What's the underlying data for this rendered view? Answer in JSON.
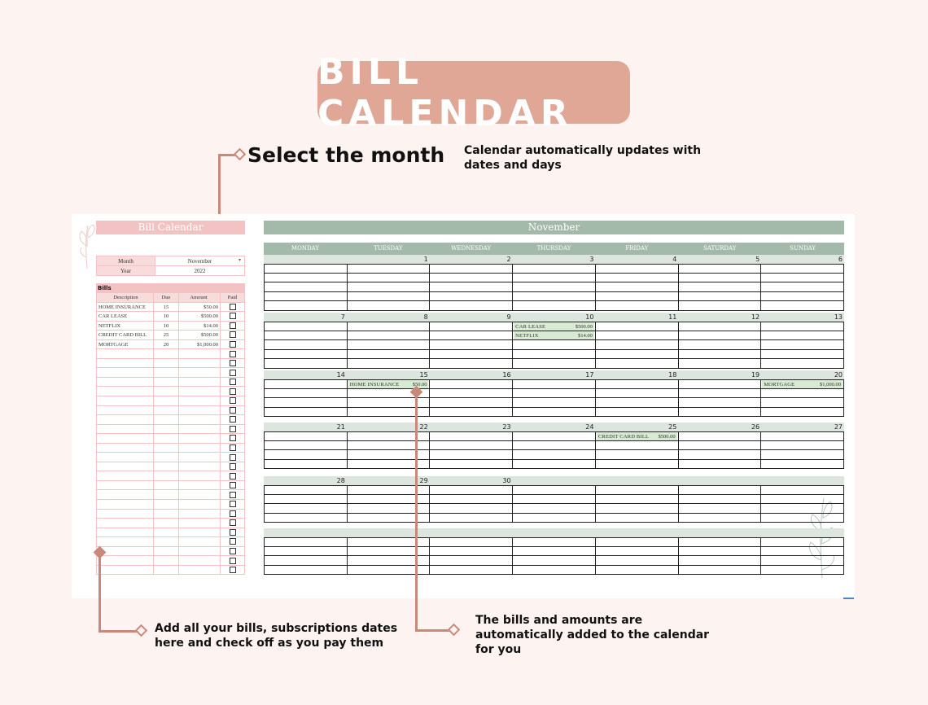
{
  "banner": {
    "title": "BILL CALENDAR"
  },
  "callouts": {
    "select_month": "Select the month",
    "auto_update": [
      "Calendar automatically updates with",
      "dates and days"
    ],
    "add_bills": [
      "Add all your bills, subscriptions dates",
      "here and check off as you pay them"
    ],
    "auto_added": [
      "The bills and amounts are",
      "automatically added to the calendar",
      "for you"
    ]
  },
  "left_panel": {
    "title": "Bill Calendar",
    "month_label": "Month",
    "month_value": "November",
    "year_label": "Year",
    "year_value": "2022",
    "bills_heading": "Bills",
    "columns": [
      "Description",
      "Due",
      "Amount",
      "Paid"
    ],
    "bills": [
      {
        "description": "HOME INSURANCE",
        "due": "15",
        "amount": "$50.00"
      },
      {
        "description": "CAR LEASE",
        "due": "10",
        "amount": "$500.00"
      },
      {
        "description": "NETFLIX",
        "due": "10",
        "amount": "$14.00"
      },
      {
        "description": "CREDIT CARD BILL",
        "due": "25",
        "amount": "$500.00"
      },
      {
        "description": "MORTGAGE",
        "due": "20",
        "amount": "$1,000.00"
      }
    ],
    "empty_rows": 24
  },
  "calendar": {
    "month": "November",
    "days": [
      "MONDAY",
      "TUESDAY",
      "WEDNESDAY",
      "THURSDAY",
      "FRIDAY",
      "SATURDAY",
      "SUNDAY"
    ],
    "weeks": [
      [
        "",
        "1",
        "2",
        "3",
        "4",
        "5",
        "6"
      ],
      [
        "7",
        "8",
        "9",
        "10",
        "11",
        "12",
        "13"
      ],
      [
        "14",
        "15",
        "16",
        "17",
        "18",
        "19",
        "20"
      ],
      [
        "21",
        "22",
        "23",
        "24",
        "25",
        "26",
        "27"
      ],
      [
        "28",
        "29",
        "30",
        "",
        "",
        "",
        ""
      ],
      [
        "",
        "",
        "",
        "",
        "",
        "",
        ""
      ]
    ],
    "events": [
      {
        "week": 1,
        "day": 3,
        "slot": 0,
        "name": "CAR LEASE",
        "amount": "$500.00"
      },
      {
        "week": 1,
        "day": 3,
        "slot": 1,
        "name": "NETFLIX",
        "amount": "$14.00"
      },
      {
        "week": 2,
        "day": 1,
        "slot": 0,
        "name": "HOME INSURANCE",
        "amount": "$50.00"
      },
      {
        "week": 2,
        "day": 6,
        "slot": 0,
        "name": "MORTGAGE",
        "amount": "$1,000.00"
      },
      {
        "week": 3,
        "day": 4,
        "slot": 0,
        "name": "CREDIT CARD BILL",
        "amount": "$500.00"
      }
    ]
  }
}
